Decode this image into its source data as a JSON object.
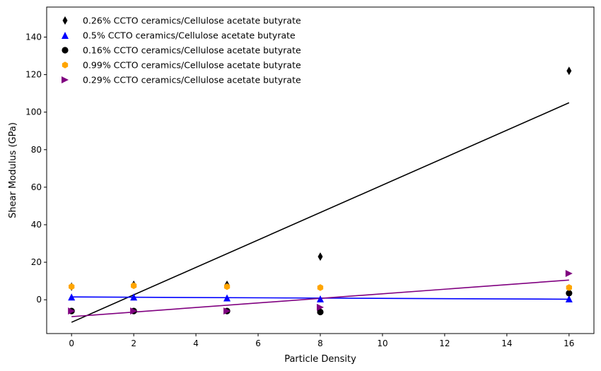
{
  "chart_data": {
    "type": "scatter",
    "title": "",
    "xlabel": "Particle Density",
    "ylabel": "Shear Modulus (GPa)",
    "xlim": [
      -0.8,
      16.8
    ],
    "ylim": [
      -18,
      156
    ],
    "xticks": [
      0,
      2,
      4,
      6,
      8,
      10,
      12,
      14,
      16
    ],
    "yticks": [
      0,
      20,
      40,
      60,
      80,
      100,
      120,
      140
    ],
    "grid": false,
    "legend_position": "top-left",
    "series": [
      {
        "name": "0.26% CCTO ceramics/Cellulose acetate butyrate",
        "marker": "thin_diamond",
        "color": "#000000",
        "points": [
          [
            0,
            7
          ],
          [
            2,
            8
          ],
          [
            5,
            8
          ],
          [
            8,
            23
          ],
          [
            16,
            122
          ]
        ],
        "fit": [
          [
            0,
            -12
          ],
          [
            16,
            105
          ]
        ]
      },
      {
        "name": "0.5% CCTO ceramics/Cellulose acetate butyrate",
        "marker": "triangle_up",
        "color": "#0000ff",
        "points": [
          [
            0,
            1.5
          ],
          [
            2,
            1.5
          ],
          [
            5,
            1
          ],
          [
            8,
            0.5
          ],
          [
            16,
            0.5
          ]
        ],
        "fit": [
          [
            0,
            1.5
          ],
          [
            16,
            0.3
          ]
        ]
      },
      {
        "name": "0.16% CCTO ceramics/Cellulose acetate butyrate",
        "marker": "circle",
        "color": "#000000",
        "points": [
          [
            0,
            -6
          ],
          [
            2,
            -6
          ],
          [
            5,
            -6
          ],
          [
            8,
            -6.5
          ],
          [
            16,
            3.5
          ]
        ],
        "fit": null
      },
      {
        "name": "0.99% CCTO ceramics/Cellulose acetate butyrate",
        "marker": "hexagon",
        "color": "#ffa500",
        "points": [
          [
            0,
            7
          ],
          [
            2,
            7.5
          ],
          [
            5,
            7
          ],
          [
            8,
            6.5
          ],
          [
            16,
            6.5
          ]
        ],
        "fit": null
      },
      {
        "name": "0.29% CCTO ceramics/Cellulose acetate butyrate",
        "marker": "triangle_right",
        "color": "#800080",
        "points": [
          [
            0,
            -6
          ],
          [
            2,
            -6
          ],
          [
            5,
            -6
          ],
          [
            8,
            -4
          ],
          [
            16,
            14
          ]
        ],
        "fit": [
          [
            0,
            -9
          ],
          [
            16,
            10.5
          ]
        ]
      }
    ]
  }
}
